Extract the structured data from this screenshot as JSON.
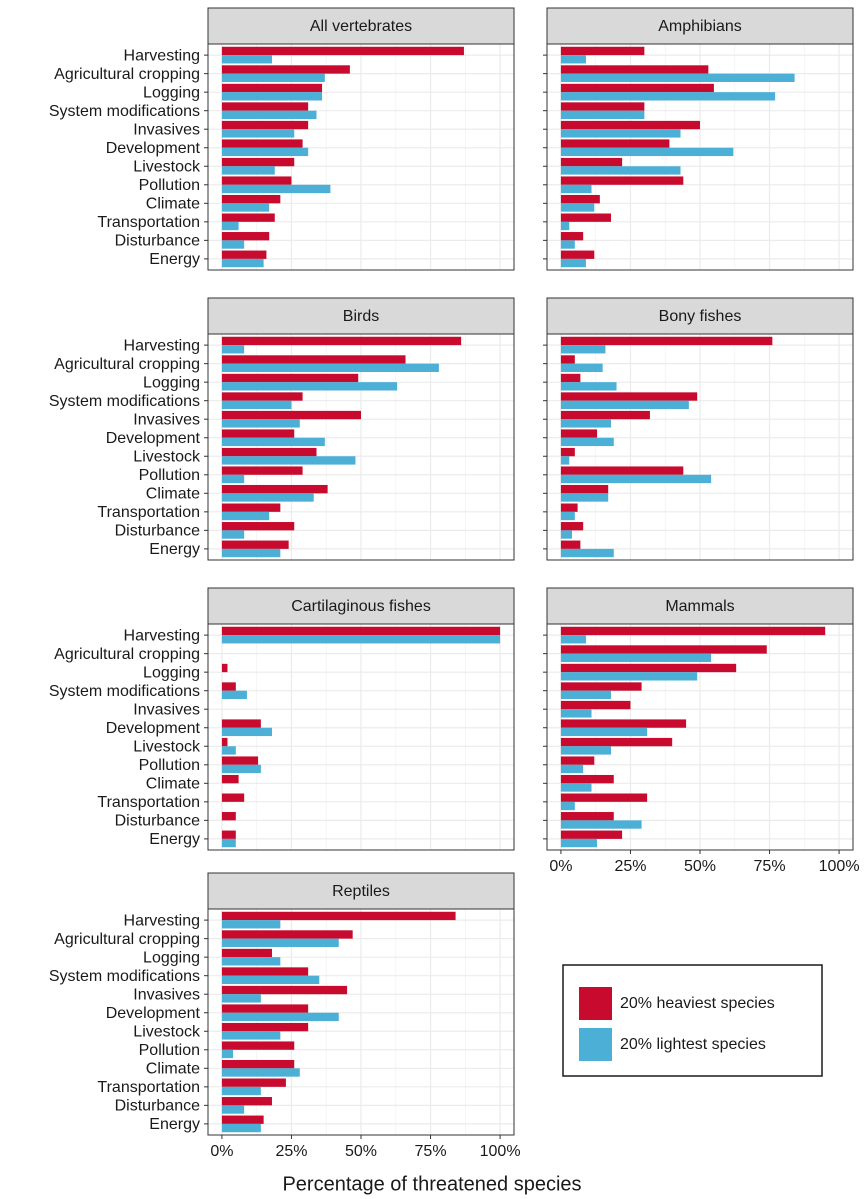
{
  "chart_data": [
    {
      "type": "bar",
      "orientation": "horizontal",
      "title": "All vertebrates",
      "categories": [
        "Harvesting",
        "Agricultural cropping",
        "Logging",
        "System modifications",
        "Invasives",
        "Development",
        "Livestock",
        "Pollution",
        "Climate",
        "Transportation",
        "Disturbance",
        "Energy"
      ],
      "series": [
        {
          "name": "20% heaviest species",
          "color": "#c70a2e",
          "values": [
            87,
            46,
            36,
            31,
            31,
            29,
            26,
            25,
            21,
            19,
            17,
            16
          ]
        },
        {
          "name": "20% lightest species",
          "color": "#4bafd6",
          "values": [
            18,
            37,
            36,
            34,
            26,
            31,
            19,
            39,
            17,
            6,
            8,
            15
          ]
        }
      ],
      "xlim": [
        -5,
        105
      ],
      "xticks": [
        0,
        25,
        50,
        75,
        100
      ],
      "grid": true
    },
    {
      "type": "bar",
      "orientation": "horizontal",
      "title": "Amphibians",
      "series": [
        {
          "color": "#c70a2e",
          "values": [
            30,
            53,
            55,
            30,
            50,
            39,
            22,
            44,
            14,
            18,
            8,
            12
          ]
        },
        {
          "color": "#4bafd6",
          "values": [
            9,
            84,
            77,
            30,
            43,
            62,
            43,
            11,
            12,
            3,
            5,
            9
          ]
        }
      ],
      "xlim": [
        -5,
        105
      ],
      "xticks": [
        0,
        25,
        50,
        75,
        100
      ],
      "grid": true
    },
    {
      "type": "bar",
      "orientation": "horizontal",
      "title": "Birds",
      "categories": [
        "Harvesting",
        "Agricultural cropping",
        "Logging",
        "System modifications",
        "Invasives",
        "Development",
        "Livestock",
        "Pollution",
        "Climate",
        "Transportation",
        "Disturbance",
        "Energy"
      ],
      "series": [
        {
          "color": "#c70a2e",
          "values": [
            86,
            66,
            49,
            29,
            50,
            26,
            34,
            29,
            38,
            21,
            26,
            24
          ]
        },
        {
          "color": "#4bafd6",
          "values": [
            8,
            78,
            63,
            25,
            28,
            37,
            48,
            8,
            33,
            17,
            8,
            21
          ]
        }
      ],
      "xlim": [
        -5,
        105
      ],
      "xticks": [
        0,
        25,
        50,
        75,
        100
      ],
      "grid": true
    },
    {
      "type": "bar",
      "orientation": "horizontal",
      "title": "Bony fishes",
      "series": [
        {
          "color": "#c70a2e",
          "values": [
            76,
            5,
            7,
            49,
            32,
            13,
            5,
            44,
            17,
            6,
            8,
            7
          ]
        },
        {
          "color": "#4bafd6",
          "values": [
            16,
            15,
            20,
            46,
            18,
            19,
            3,
            54,
            17,
            5,
            4,
            19
          ]
        }
      ],
      "xlim": [
        -5,
        105
      ],
      "xticks": [
        0,
        25,
        50,
        75,
        100
      ],
      "grid": true
    },
    {
      "type": "bar",
      "orientation": "horizontal",
      "title": "Cartilaginous fishes",
      "categories": [
        "Harvesting",
        "Agricultural cropping",
        "Logging",
        "System modifications",
        "Invasives",
        "Development",
        "Livestock",
        "Pollution",
        "Climate",
        "Transportation",
        "Disturbance",
        "Energy"
      ],
      "series": [
        {
          "color": "#c70a2e",
          "values": [
            100,
            0,
            2,
            5,
            0,
            14,
            2,
            13,
            6,
            8,
            5,
            5
          ]
        },
        {
          "color": "#4bafd6",
          "values": [
            100,
            0,
            0,
            9,
            0,
            18,
            5,
            14,
            0,
            0,
            0,
            5
          ]
        }
      ],
      "xlim": [
        -5,
        105
      ],
      "xticks": [
        0,
        25,
        50,
        75,
        100
      ],
      "grid": true
    },
    {
      "type": "bar",
      "orientation": "horizontal",
      "title": "Mammals",
      "series": [
        {
          "color": "#c70a2e",
          "values": [
            95,
            74,
            63,
            29,
            25,
            45,
            40,
            12,
            19,
            31,
            19,
            22
          ]
        },
        {
          "color": "#4bafd6",
          "values": [
            9,
            54,
            49,
            18,
            11,
            31,
            18,
            8,
            11,
            5,
            29,
            13
          ]
        }
      ],
      "xlim": [
        -5,
        105
      ],
      "xticks": [
        {
          "value": 0,
          "label": "0%"
        },
        {
          "value": 25,
          "label": "25%"
        },
        {
          "value": 50,
          "label": "50%"
        },
        {
          "value": 75,
          "label": "75%"
        },
        {
          "value": 100,
          "label": "100%"
        }
      ],
      "grid": true
    },
    {
      "type": "bar",
      "orientation": "horizontal",
      "title": "Reptiles",
      "categories": [
        "Harvesting",
        "Agricultural cropping",
        "Logging",
        "System modifications",
        "Invasives",
        "Development",
        "Livestock",
        "Pollution",
        "Climate",
        "Transportation",
        "Disturbance",
        "Energy"
      ],
      "series": [
        {
          "color": "#c70a2e",
          "values": [
            84,
            47,
            18,
            31,
            45,
            31,
            31,
            26,
            26,
            23,
            18,
            15
          ]
        },
        {
          "color": "#4bafd6",
          "values": [
            21,
            42,
            21,
            35,
            14,
            42,
            21,
            4,
            28,
            14,
            8,
            14
          ]
        }
      ],
      "xlim": [
        -5,
        105
      ],
      "xticks": [
        {
          "value": 0,
          "label": "0%"
        },
        {
          "value": 25,
          "label": "25%"
        },
        {
          "value": 50,
          "label": "50%"
        },
        {
          "value": 75,
          "label": "75%"
        },
        {
          "value": 100,
          "label": "100%"
        }
      ],
      "grid": true,
      "xlabel": "Percentage of threatened species"
    }
  ]
}
